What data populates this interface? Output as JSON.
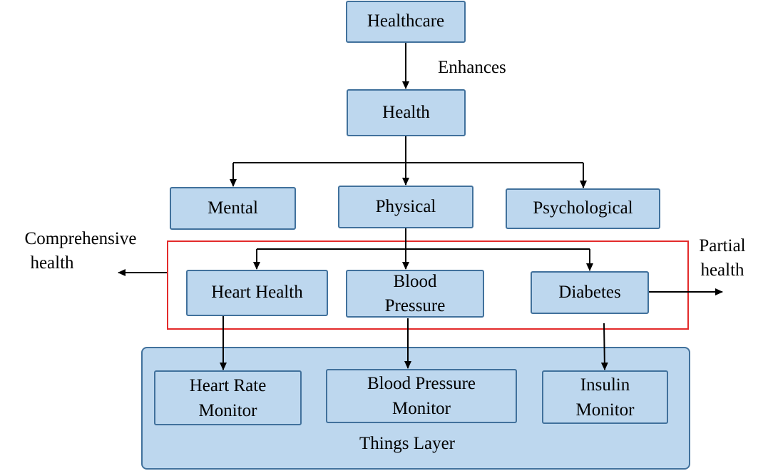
{
  "diagram": {
    "top": {
      "healthcare": "Healthcare",
      "enhances": "Enhances",
      "health": "Health"
    },
    "categories": {
      "mental": "Mental",
      "physical": "Physical",
      "psychological": "Psychological"
    },
    "conditions": {
      "heart": "Heart Health",
      "bp_line1": "Blood",
      "bp_line2": "Pressure",
      "diabetes": "Diabetes"
    },
    "side_labels": {
      "comprehensive_line1": "Comprehensive",
      "comprehensive_line2": "health",
      "partial_line1": "Partial",
      "partial_line2": "health"
    },
    "devices": {
      "hr_line1": "Heart Rate",
      "hr_line2": "Monitor",
      "bpm_line1": "Blood Pressure",
      "bpm_line2": "Monitor",
      "ins_line1": "Insulin",
      "ins_line2": "Monitor"
    },
    "layer_label": "Things Layer"
  }
}
